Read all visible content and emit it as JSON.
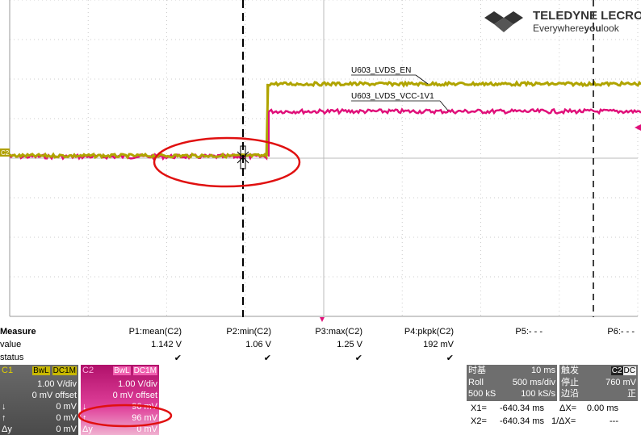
{
  "logo": {
    "brand": "TELEDYNE LECROY",
    "tagline": [
      "Everywhere",
      "you",
      "look"
    ]
  },
  "channel_marker": "C2",
  "trace_labels": [
    "U603_LVDS_EN",
    "U603_LVDS_VCC-1V1"
  ],
  "measure": {
    "headers": [
      "Measure",
      "P1:mean(C2)",
      "P2:min(C2)",
      "P3:max(C2)",
      "P4:pkpk(C2)",
      "P5:- - -",
      "P6:- - -"
    ],
    "rows": [
      {
        "label": "value",
        "cells": [
          "1.142 V",
          "1.06 V",
          "1.25 V",
          "192 mV"
        ]
      },
      {
        "label": "status",
        "cells": [
          "✔",
          "✔",
          "✔",
          "✔"
        ]
      }
    ]
  },
  "channels": [
    {
      "name": "C1",
      "tags": [
        "BwL",
        "DC1M"
      ],
      "scale": "1.00 V/div",
      "offset": "0 mV offset",
      "rows": [
        [
          "↓",
          "0 mV"
        ],
        [
          "↑",
          "0 mV"
        ],
        [
          "Δy",
          "0 mV"
        ]
      ]
    },
    {
      "name": "C2",
      "tags": [
        "BwL",
        "DC1M"
      ],
      "scale": "1.00 V/div",
      "offset": "0 mV offset",
      "rows": [
        [
          "↓",
          "96 mV"
        ],
        [
          "↑",
          "96 mV"
        ],
        [
          "Δy",
          "0 mV"
        ]
      ]
    }
  ],
  "timebase": {
    "title": "时基",
    "value": "10 ms",
    "rows": [
      [
        "Roll",
        "500 ms/div"
      ],
      [
        "500 kS",
        "100 kS/s"
      ]
    ]
  },
  "trigger": {
    "title": "触发",
    "tags": [
      "C2",
      "DC"
    ],
    "rows": [
      [
        "停止",
        "760 mV"
      ],
      [
        "边沿",
        "正"
      ]
    ]
  },
  "cursors": [
    [
      "X1=",
      "-640.34 ms",
      "ΔX=",
      "0.00 ms"
    ],
    [
      "X2=",
      "-640.34 ms",
      "1/ΔX=",
      "---"
    ]
  ]
}
